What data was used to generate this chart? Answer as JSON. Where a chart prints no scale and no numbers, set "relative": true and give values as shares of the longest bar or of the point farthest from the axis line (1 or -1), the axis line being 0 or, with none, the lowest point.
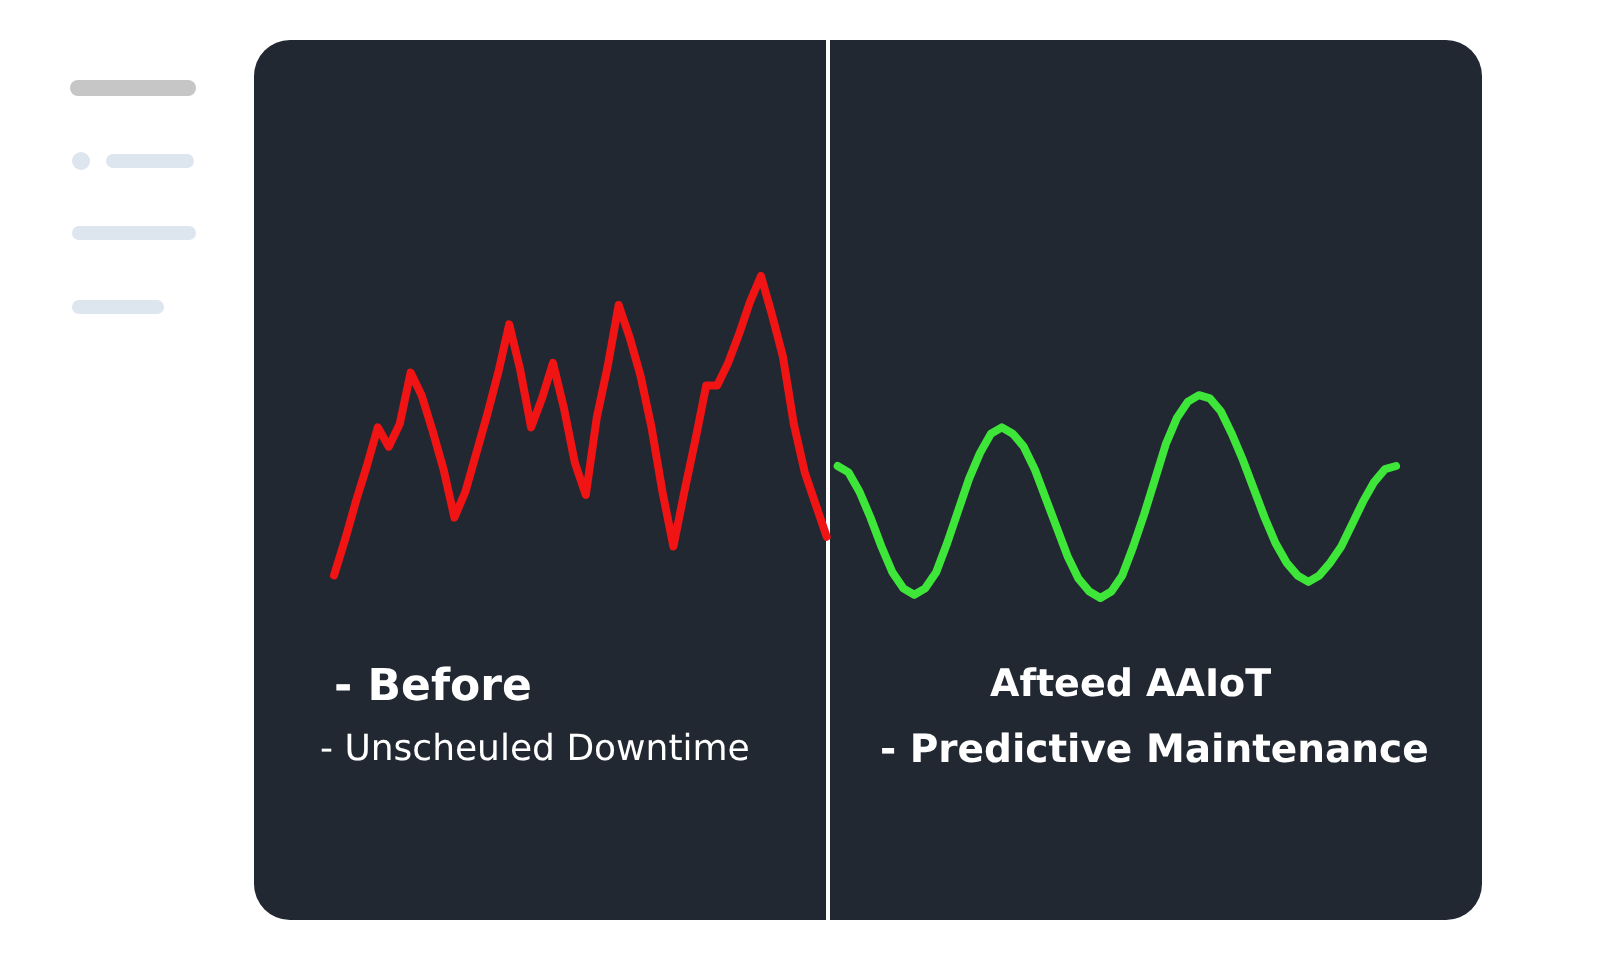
{
  "chart_data": {
    "type": "line",
    "relative": true,
    "marker": "none",
    "line_style": "solid",
    "categories": [
      null,
      null,
      null,
      null,
      null,
      null,
      null,
      null,
      null,
      null,
      null,
      null,
      null,
      null,
      null,
      null,
      null,
      null,
      null,
      null,
      null,
      null,
      null,
      null,
      null,
      null,
      null,
      null,
      null,
      null,
      null,
      null,
      null,
      null,
      null,
      null,
      null,
      null,
      null,
      null,
      null,
      null,
      null,
      null,
      null,
      null,
      null,
      null,
      null,
      null,
      null,
      null,
      null,
      null,
      null,
      null,
      null,
      null,
      null,
      null,
      null,
      null,
      null,
      null,
      null,
      null,
      null,
      null,
      null,
      null,
      null,
      null,
      null,
      null,
      null,
      null,
      null,
      null,
      null,
      null,
      null,
      null,
      null,
      null,
      null,
      null,
      null,
      null,
      null,
      null,
      null,
      null,
      null,
      null,
      null,
      null,
      null,
      null
    ],
    "series": [
      {
        "color": "#f01414",
        "values": [
          0.07,
          0.18,
          0.3,
          0.41,
          0.53,
          0.47,
          0.54,
          0.7,
          0.63,
          0.52,
          0.4,
          0.25,
          0.33,
          0.45,
          0.57,
          0.7,
          0.85,
          0.71,
          0.53,
          0.62,
          0.73,
          0.59,
          0.42,
          0.32,
          0.56,
          0.72,
          0.91,
          0.81,
          0.69,
          0.53,
          0.33,
          0.16,
          0.33,
          0.49,
          0.66,
          0.66,
          0.73,
          0.82,
          0.92,
          1,
          0.88,
          0.75,
          0.54,
          0.39,
          0.29,
          0.19,
          null,
          null,
          null,
          null,
          null,
          null,
          null,
          null,
          null,
          null,
          null,
          null,
          null,
          null,
          null,
          null,
          null,
          null,
          null,
          null,
          null,
          null,
          null,
          null,
          null,
          null,
          null,
          null,
          null,
          null,
          null,
          null,
          null,
          null,
          null,
          null,
          null,
          null,
          null,
          null,
          null,
          null,
          null,
          null,
          null,
          null,
          null,
          null,
          null,
          null,
          null,
          null
        ]
      },
      {
        "color": "#3ee63a",
        "values": [
          null,
          null,
          null,
          null,
          null,
          null,
          null,
          null,
          null,
          null,
          null,
          null,
          null,
          null,
          null,
          null,
          null,
          null,
          null,
          null,
          null,
          null,
          null,
          null,
          null,
          null,
          null,
          null,
          null,
          null,
          null,
          null,
          null,
          null,
          null,
          null,
          null,
          null,
          null,
          null,
          null,
          null,
          null,
          null,
          null,
          null,
          0.41,
          0.39,
          0.33,
          0.25,
          0.16,
          0.08,
          0.03,
          0.01,
          0.03,
          0.08,
          0.17,
          0.27,
          0.37,
          0.45,
          0.51,
          0.53,
          0.51,
          0.47,
          0.4,
          0.31,
          0.22,
          0.13,
          0.06,
          0.02,
          0,
          0.02,
          0.07,
          0.16,
          0.26,
          0.37,
          0.48,
          0.56,
          0.61,
          0.63,
          0.62,
          0.58,
          0.51,
          0.43,
          0.34,
          0.25,
          0.17,
          0.11,
          0.07,
          0.05,
          0.07,
          0.11,
          0.16,
          0.23,
          0.3,
          0.36,
          0.4,
          0.41
        ]
      }
    ],
    "annotations": [
      "- Before",
      "- Unscheuled Downtime",
      "Afteed AAIoT",
      "- Predictive Maintenance"
    ]
  }
}
